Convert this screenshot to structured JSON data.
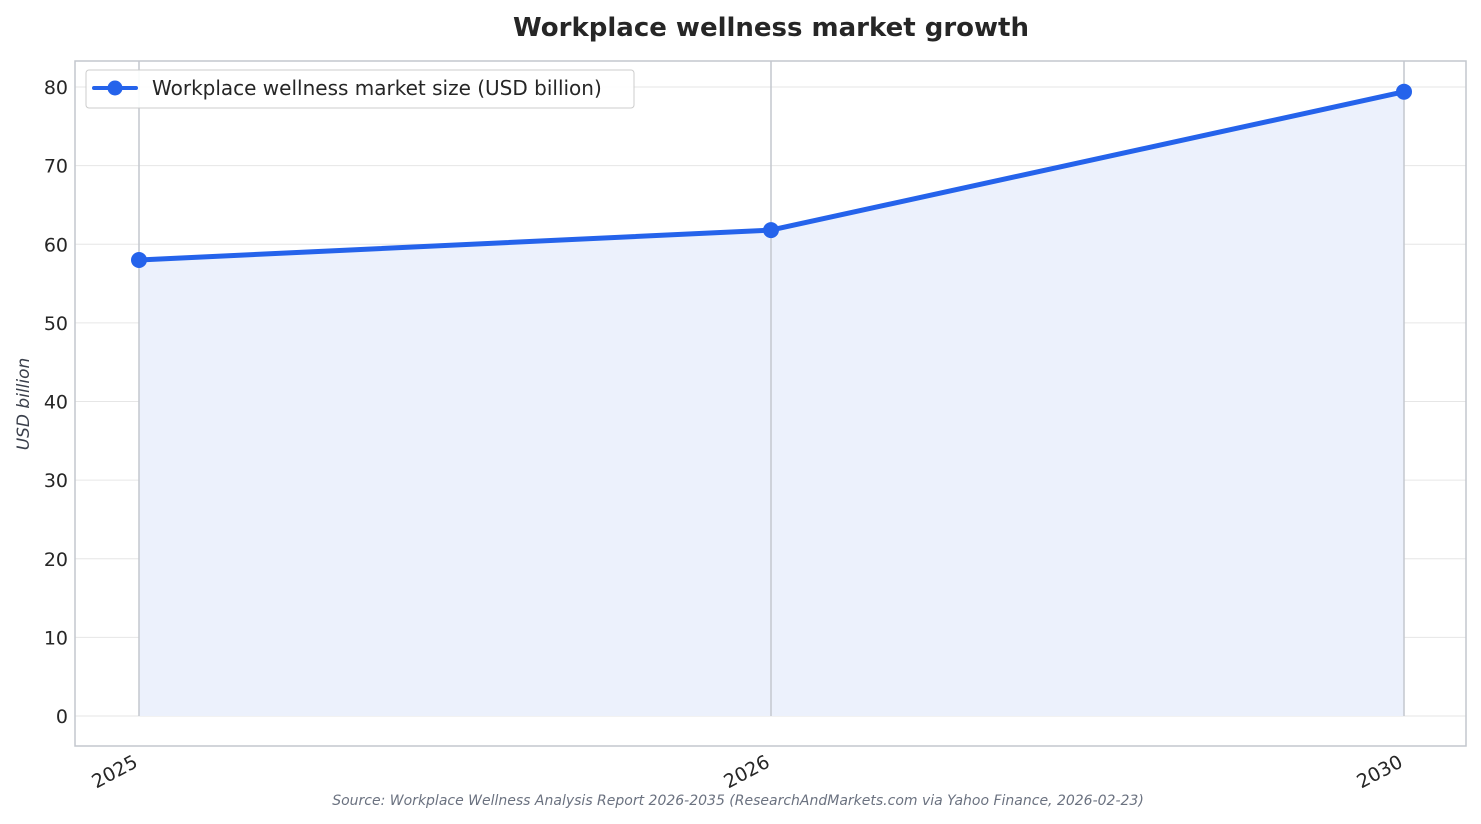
{
  "chart_data": {
    "type": "area",
    "title": "Workplace wellness market growth",
    "xlabel": "",
    "ylabel": "USD billion",
    "categories": [
      "2025",
      "2026",
      "2030"
    ],
    "series": [
      {
        "name": "Workplace wellness market size (USD billion)",
        "values": [
          58.0,
          61.8,
          79.4
        ]
      }
    ],
    "yticks": [
      "0",
      "10",
      "20",
      "30",
      "40",
      "50",
      "60",
      "70",
      "80"
    ],
    "ylim": [
      -3.8,
      83.3
    ],
    "grid": true,
    "legend_position": "top-left",
    "colors": {
      "line": "#2563eb",
      "fill": "#ecf1fc",
      "grid": "#e6e6e6",
      "axes": "#c3c7ce"
    },
    "source": "Source: Workplace Wellness Analysis Report 2026-2035 (ResearchAndMarkets.com via Yahoo Finance, 2026-02-23)"
  }
}
